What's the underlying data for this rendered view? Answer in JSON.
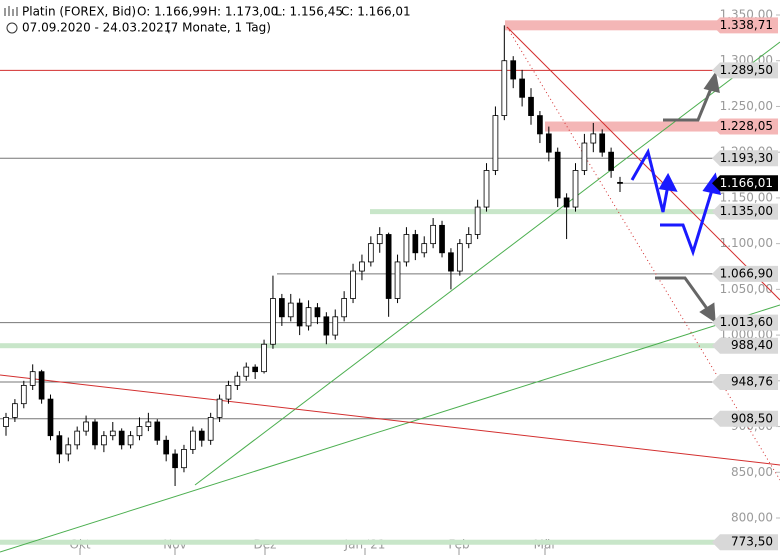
{
  "chart_data": {
    "type": "candlestick",
    "title": "Platin (FOREX, Bid)",
    "ohlc_text": [
      "O: 1.166,99",
      "H: 1.173,00",
      "L: 1.156,45",
      "C: 1.166,01"
    ],
    "period": "07.09.2020 - 24.03.2021",
    "period_note": "(7 Monate, 1 Tag)",
    "x_labels": [
      "Okt",
      "Nov",
      "Dez",
      "Jan '21",
      "Feb",
      "Mär"
    ],
    "ylim": [
      800,
      1350
    ],
    "yticks": [
      {
        "value": 800,
        "label": "800,00"
      },
      {
        "value": 850,
        "label": "850,00"
      },
      {
        "value": 900,
        "label": "900,00"
      },
      {
        "value": 950,
        "label": "950,00"
      },
      {
        "value": 1000,
        "label": "1.000,00"
      },
      {
        "value": 1050,
        "label": "1.050,00"
      },
      {
        "value": 1100,
        "label": "1.100,00"
      },
      {
        "value": 1150,
        "label": "1.150,00"
      },
      {
        "value": 1200,
        "label": "1.200,00"
      },
      {
        "value": 1250,
        "label": "1.250,00"
      },
      {
        "value": 1300,
        "label": "1.300,00"
      },
      {
        "value": 1350,
        "label": "1.350,00"
      }
    ],
    "levels": [
      {
        "value": 1338.71,
        "label": "1.338,71",
        "style": "red-zone"
      },
      {
        "value": 1289.5,
        "label": "1.289,50",
        "style": "red-line"
      },
      {
        "value": 1228.05,
        "label": "1.228,05",
        "style": "red-zone"
      },
      {
        "value": 1193.3,
        "label": "1.193,30",
        "style": "gray"
      },
      {
        "value": 1166.01,
        "label": "1.166,01",
        "style": "current"
      },
      {
        "value": 1135.0,
        "label": "1.135,00",
        "style": "green-zone"
      },
      {
        "value": 1066.9,
        "label": "1.066,90",
        "style": "gray"
      },
      {
        "value": 1013.6,
        "label": "1.013,60",
        "style": "gray"
      },
      {
        "value": 988.4,
        "label": "988,40",
        "style": "green-zone"
      },
      {
        "value": 948.76,
        "label": "948,76",
        "style": "gray"
      },
      {
        "value": 908.5,
        "label": "908,50",
        "style": "gray"
      },
      {
        "value": 773.5,
        "label": "773,50",
        "style": "green-zone"
      }
    ],
    "candles": [
      [
        900,
        915,
        890,
        910
      ],
      [
        910,
        930,
        905,
        925
      ],
      [
        925,
        950,
        920,
        945
      ],
      [
        945,
        968,
        940,
        960
      ],
      [
        960,
        962,
        925,
        930
      ],
      [
        930,
        935,
        885,
        890
      ],
      [
        890,
        895,
        860,
        870
      ],
      [
        870,
        888,
        862,
        880
      ],
      [
        880,
        900,
        875,
        895
      ],
      [
        895,
        912,
        890,
        905
      ],
      [
        905,
        908,
        875,
        880
      ],
      [
        880,
        895,
        872,
        890
      ],
      [
        890,
        905,
        885,
        895
      ],
      [
        895,
        898,
        875,
        880
      ],
      [
        880,
        895,
        876,
        890
      ],
      [
        890,
        910,
        885,
        900
      ],
      [
        900,
        915,
        895,
        905
      ],
      [
        905,
        908,
        880,
        885
      ],
      [
        885,
        890,
        862,
        870
      ],
      [
        870,
        875,
        835,
        855
      ],
      [
        855,
        880,
        850,
        875
      ],
      [
        875,
        900,
        870,
        895
      ],
      [
        895,
        898,
        878,
        885
      ],
      [
        885,
        915,
        880,
        910
      ],
      [
        910,
        935,
        905,
        930
      ],
      [
        930,
        950,
        925,
        945
      ],
      [
        945,
        960,
        940,
        955
      ],
      [
        955,
        970,
        950,
        965
      ],
      [
        965,
        968,
        952,
        960
      ],
      [
        960,
        995,
        958,
        990
      ],
      [
        990,
        1065,
        985,
        1040
      ],
      [
        1040,
        1045,
        1010,
        1020
      ],
      [
        1020,
        1045,
        1015,
        1035
      ],
      [
        1035,
        1040,
        1000,
        1010
      ],
      [
        1010,
        1038,
        1005,
        1030
      ],
      [
        1030,
        1035,
        1012,
        1020
      ],
      [
        1020,
        1025,
        990,
        1000
      ],
      [
        1000,
        1028,
        995,
        1020
      ],
      [
        1020,
        1048,
        1015,
        1040
      ],
      [
        1040,
        1078,
        1035,
        1070
      ],
      [
        1070,
        1088,
        1060,
        1080
      ],
      [
        1080,
        1108,
        1075,
        1100
      ],
      [
        1100,
        1118,
        1090,
        1110
      ],
      [
        1110,
        1112,
        1020,
        1040
      ],
      [
        1040,
        1088,
        1035,
        1080
      ],
      [
        1080,
        1118,
        1075,
        1110
      ],
      [
        1110,
        1115,
        1082,
        1090
      ],
      [
        1090,
        1108,
        1085,
        1100
      ],
      [
        1100,
        1128,
        1095,
        1120
      ],
      [
        1120,
        1125,
        1085,
        1090
      ],
      [
        1090,
        1095,
        1050,
        1070
      ],
      [
        1070,
        1105,
        1065,
        1100
      ],
      [
        1100,
        1118,
        1095,
        1110
      ],
      [
        1110,
        1148,
        1105,
        1140
      ],
      [
        1140,
        1188,
        1135,
        1180
      ],
      [
        1180,
        1250,
        1175,
        1240
      ],
      [
        1240,
        1338.71,
        1235,
        1300
      ],
      [
        1300,
        1305,
        1270,
        1280
      ],
      [
        1280,
        1290,
        1250,
        1260
      ],
      [
        1260,
        1270,
        1230,
        1240
      ],
      [
        1240,
        1245,
        1210,
        1220
      ],
      [
        1220,
        1228,
        1190,
        1200
      ],
      [
        1200,
        1205,
        1140,
        1150
      ],
      [
        1150,
        1155,
        1105,
        1140
      ],
      [
        1140,
        1188,
        1135,
        1180
      ],
      [
        1180,
        1220,
        1175,
        1210
      ],
      [
        1210,
        1232,
        1200,
        1220
      ],
      [
        1220,
        1225,
        1195,
        1200
      ],
      [
        1200,
        1205,
        1172,
        1180
      ],
      [
        1166.99,
        1173,
        1156.45,
        1166.01
      ]
    ]
  }
}
